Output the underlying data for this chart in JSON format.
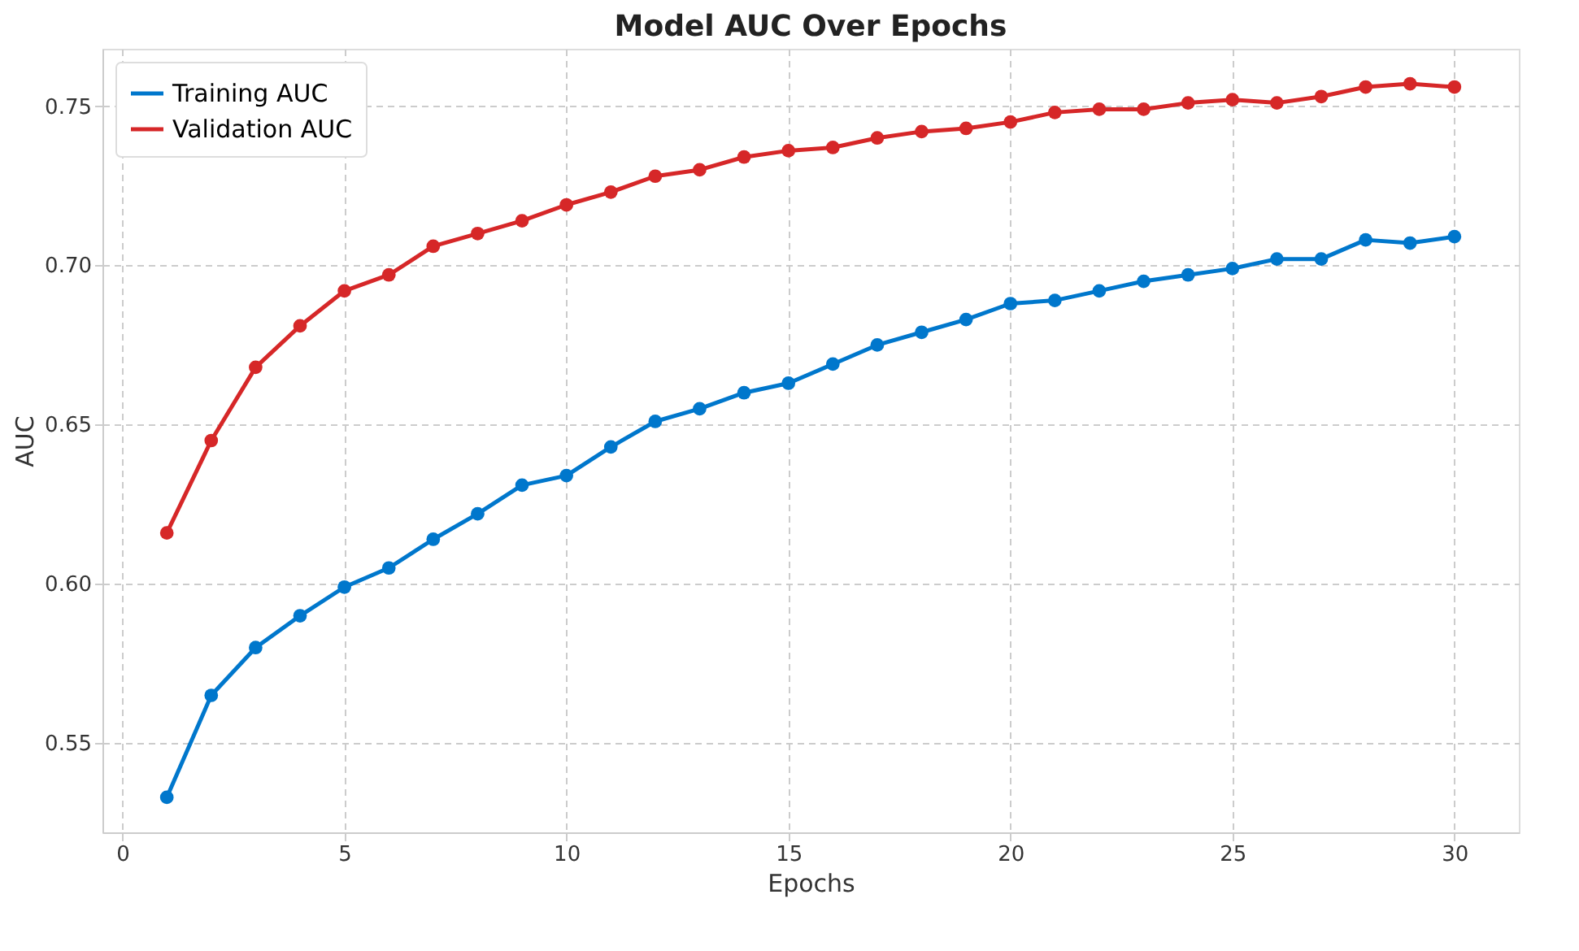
{
  "chart_data": {
    "type": "line",
    "title": "Model AUC Over Epochs",
    "xlabel": "Epochs",
    "ylabel": "AUC",
    "x": [
      1,
      2,
      3,
      4,
      5,
      6,
      7,
      8,
      9,
      10,
      11,
      12,
      13,
      14,
      15,
      16,
      17,
      18,
      19,
      20,
      21,
      22,
      23,
      24,
      25,
      26,
      27,
      28,
      29,
      30
    ],
    "series": [
      {
        "name": "Training AUC",
        "color": "#0077cc",
        "values": [
          0.533,
          0.565,
          0.58,
          0.59,
          0.599,
          0.605,
          0.614,
          0.622,
          0.631,
          0.634,
          0.643,
          0.651,
          0.655,
          0.66,
          0.663,
          0.669,
          0.675,
          0.679,
          0.683,
          0.688,
          0.689,
          0.692,
          0.695,
          0.697,
          0.699,
          0.702,
          0.702,
          0.708,
          0.707,
          0.709
        ]
      },
      {
        "name": "Validation AUC",
        "color": "#d62728",
        "values": [
          0.616,
          0.645,
          0.668,
          0.681,
          0.692,
          0.697,
          0.706,
          0.71,
          0.714,
          0.719,
          0.723,
          0.728,
          0.73,
          0.734,
          0.736,
          0.737,
          0.74,
          0.742,
          0.743,
          0.745,
          0.748,
          0.749,
          0.749,
          0.751,
          0.752,
          0.751,
          0.753,
          0.756,
          0.757,
          0.756
        ]
      }
    ],
    "xlim": [
      -0.45,
      31.45
    ],
    "ylim": [
      0.522,
      0.768
    ],
    "xticks": [
      0,
      5,
      10,
      15,
      20,
      25,
      30
    ],
    "yticks": [
      0.55,
      {
        "value": 0.6,
        "label": "0.60"
      },
      0.65,
      {
        "value": 0.7,
        "label": "0.70"
      },
      0.75
    ],
    "grid": true,
    "legend": "top left",
    "marker": "circle",
    "line_style": "solid"
  }
}
